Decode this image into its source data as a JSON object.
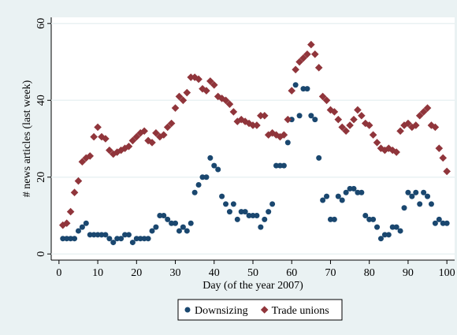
{
  "chart_data": {
    "type": "scatter",
    "x_label": "Day (of the year 2007)",
    "y_label": "# news articles (last week)",
    "x": [
      1,
      2,
      3,
      4,
      5,
      6,
      7,
      8,
      9,
      10,
      11,
      12,
      13,
      14,
      15,
      16,
      17,
      18,
      19,
      20,
      21,
      22,
      23,
      24,
      25,
      26,
      27,
      28,
      29,
      30,
      31,
      32,
      33,
      34,
      35,
      36,
      37,
      38,
      39,
      40,
      41,
      42,
      43,
      44,
      45,
      46,
      47,
      48,
      49,
      50,
      51,
      52,
      53,
      54,
      55,
      56,
      57,
      58,
      59,
      60,
      61,
      62,
      63,
      64,
      65,
      66,
      67,
      68,
      69,
      70,
      71,
      72,
      73,
      74,
      75,
      76,
      77,
      78,
      79,
      80,
      81,
      82,
      83,
      84,
      85,
      86,
      87,
      88,
      89,
      90,
      91,
      92,
      93,
      94,
      95,
      96,
      97,
      98,
      99,
      100
    ],
    "series": [
      {
        "name": "Downsizing",
        "color": "#1a476f",
        "marker": "circle",
        "values": [
          4,
          4,
          4,
          4,
          6,
          7,
          8,
          5,
          5,
          5,
          5,
          5,
          4,
          3,
          4,
          4,
          5,
          5,
          3,
          4,
          4,
          4,
          4,
          6,
          7,
          10,
          10,
          9,
          8,
          8,
          6,
          7,
          6,
          8,
          16,
          18,
          20,
          20,
          25,
          23,
          22,
          15,
          13,
          11,
          13,
          9,
          11,
          11,
          10,
          10,
          10,
          7,
          9,
          11,
          13,
          23,
          23,
          23,
          29,
          35,
          44,
          36,
          43,
          43,
          36,
          35,
          25,
          14,
          15,
          9,
          9,
          15,
          14,
          16,
          17,
          17,
          16,
          16,
          10,
          9,
          9,
          7,
          4,
          5,
          5,
          7,
          7,
          6,
          12,
          16,
          15,
          16,
          13,
          16,
          15,
          13,
          8,
          9,
          8,
          8
        ]
      },
      {
        "name": "Trade unions",
        "color": "#90353b",
        "marker": "diamond",
        "values": [
          7.5,
          8,
          11,
          16,
          19,
          24,
          25,
          25.5,
          30.5,
          33,
          30.5,
          30,
          27,
          26,
          26.5,
          27,
          27.5,
          28,
          29.5,
          30.5,
          31.5,
          32,
          29.5,
          29,
          31.5,
          30.5,
          31,
          33,
          34,
          38,
          41,
          40,
          42,
          46,
          46,
          45.5,
          43,
          42.5,
          45,
          44,
          41,
          40.5,
          40,
          39,
          37,
          34.5,
          35,
          34.5,
          34,
          33.5,
          33.5,
          36,
          36,
          31,
          31.5,
          31,
          30.5,
          31,
          35,
          42.5,
          48,
          50,
          51,
          52,
          54.5,
          52,
          48.5,
          41,
          40,
          37.5,
          37,
          35,
          33,
          32,
          33.5,
          35,
          37.5,
          36,
          34,
          33.5,
          31,
          29,
          27.5,
          27,
          27.5,
          27,
          26.5,
          32,
          33.5,
          34,
          33,
          33.5,
          36,
          37,
          38,
          33.5,
          33,
          27.5,
          25,
          21.5
        ]
      }
    ],
    "xlim": [
      -2,
      102
    ],
    "ylim": [
      -1.6,
      61.6
    ],
    "xticks": [
      0,
      10,
      20,
      30,
      40,
      50,
      60,
      70,
      80,
      90,
      100
    ],
    "yticks": [
      0,
      20,
      40,
      60
    ],
    "legend": "bottom"
  }
}
